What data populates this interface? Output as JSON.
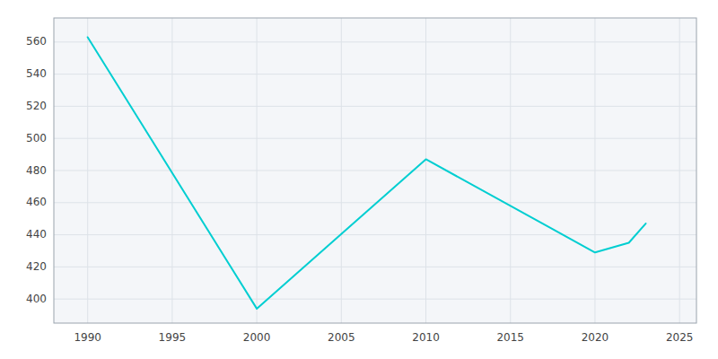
{
  "chart_data": {
    "type": "line",
    "x": [
      1990,
      2000,
      2010,
      2020,
      2022,
      2023
    ],
    "values": [
      563,
      394,
      487,
      429,
      435,
      447
    ],
    "color": "#00CED1",
    "xlim": [
      1988,
      2026
    ],
    "ylim": [
      385,
      575
    ],
    "xticks": [
      1990,
      1995,
      2000,
      2005,
      2010,
      2015,
      2020,
      2025
    ],
    "yticks": [
      400,
      420,
      440,
      460,
      480,
      500,
      520,
      540,
      560
    ],
    "grid": true
  }
}
